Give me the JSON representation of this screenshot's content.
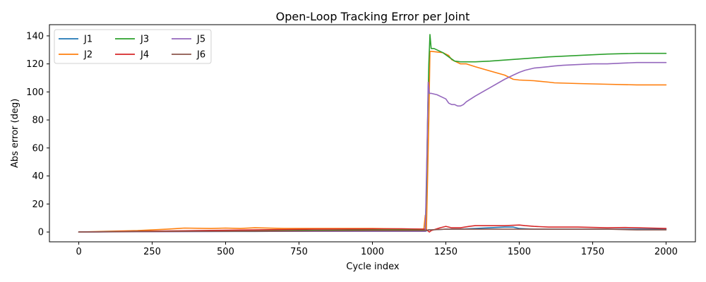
{
  "chart_data": {
    "type": "line",
    "title": "Open-Loop Tracking Error per Joint",
    "xlabel": "Cycle index",
    "ylabel": "Abs error (deg)",
    "xlim": [
      -100,
      2100
    ],
    "ylim": [
      -7,
      148
    ],
    "xticks": [
      0,
      250,
      500,
      750,
      1000,
      1250,
      1500,
      1750,
      2000
    ],
    "yticks": [
      0,
      20,
      40,
      60,
      80,
      100,
      120,
      140
    ],
    "grid": false,
    "legend": {
      "placement": "upper-left",
      "columns": 3
    },
    "series": [
      {
        "name": "J1",
        "color": "#1f77b4",
        "x": [
          0,
          100,
          200,
          400,
          600,
          800,
          1000,
          1100,
          1180,
          1190,
          1200,
          1250,
          1300,
          1350,
          1400,
          1450,
          1480,
          1500,
          1550,
          1600,
          1700,
          1800,
          1900,
          2000
        ],
        "y": [
          0,
          0.2,
          0.3,
          0.4,
          0.4,
          0.5,
          0.5,
          0.5,
          0.5,
          1.5,
          1.5,
          2,
          2,
          2.5,
          3,
          3.5,
          3.5,
          2.5,
          2,
          2,
          2,
          2,
          2,
          2
        ]
      },
      {
        "name": "J2",
        "color": "#ff7f0e",
        "x": [
          0,
          100,
          200,
          300,
          360,
          450,
          500,
          550,
          600,
          700,
          800,
          900,
          1000,
          1100,
          1175,
          1180,
          1184,
          1188,
          1192,
          1196,
          1200,
          1240,
          1260,
          1270,
          1280,
          1300,
          1320,
          1350,
          1400,
          1450,
          1480,
          1500,
          1550,
          1600,
          1620,
          1700,
          1800,
          1900,
          2000
        ],
        "y": [
          0,
          0.5,
          1,
          2,
          2.8,
          2.5,
          2.8,
          2.5,
          3,
          2.5,
          2.5,
          2.5,
          2.5,
          2.2,
          2,
          12,
          2,
          40,
          80,
          129,
          129,
          128,
          126,
          123,
          122,
          120,
          120,
          118,
          115,
          112,
          109,
          108.5,
          108,
          107,
          106.5,
          106,
          105.5,
          105,
          105
        ]
      },
      {
        "name": "J3",
        "color": "#2ca02c",
        "x": [
          0,
          200,
          400,
          600,
          800,
          1000,
          1100,
          1180,
          1184,
          1188,
          1192,
          1196,
          1200,
          1210,
          1220,
          1240,
          1260,
          1280,
          1300,
          1350,
          1400,
          1500,
          1600,
          1700,
          1800,
          1900,
          2000
        ],
        "y": [
          0,
          0.5,
          0.8,
          1,
          1.2,
          1.5,
          1.5,
          1.5,
          30,
          80,
          120,
          141,
          131,
          131,
          130,
          128,
          125,
          122,
          121.5,
          121.5,
          122,
          123.5,
          125,
          126,
          127,
          127.5,
          127.5
        ]
      },
      {
        "name": "J4",
        "color": "#d62728",
        "x": [
          0,
          200,
          400,
          600,
          800,
          1000,
          1100,
          1180,
          1188,
          1194,
          1200,
          1230,
          1250,
          1270,
          1300,
          1330,
          1350,
          1400,
          1450,
          1500,
          1520,
          1550,
          1600,
          1700,
          1800,
          1860,
          1900,
          2000
        ],
        "y": [
          0,
          0.5,
          1,
          1.5,
          2,
          2.2,
          2.3,
          2,
          1,
          0,
          1,
          3,
          4,
          3,
          3,
          4,
          4.5,
          4.5,
          4.5,
          5,
          4.5,
          4,
          3.5,
          3.5,
          3,
          3.2,
          3,
          2.5
        ]
      },
      {
        "name": "J5",
        "color": "#9467bd",
        "x": [
          0,
          200,
          400,
          600,
          800,
          1000,
          1100,
          1180,
          1186,
          1190,
          1194,
          1200,
          1220,
          1240,
          1250,
          1260,
          1270,
          1280,
          1290,
          1300,
          1310,
          1320,
          1350,
          1400,
          1450,
          1480,
          1500,
          1520,
          1550,
          1600,
          1620,
          1650,
          1700,
          1750,
          1800,
          1850,
          1900,
          2000
        ],
        "y": [
          0,
          0.2,
          0.3,
          0.5,
          0.5,
          0.5,
          0.5,
          0.5,
          60,
          107,
          99,
          99,
          98,
          96,
          95,
          92,
          91,
          91,
          90,
          90,
          91,
          93,
          97,
          103,
          109,
          112,
          114,
          115.5,
          117,
          118,
          118.5,
          119,
          119.5,
          120,
          120,
          120.5,
          121,
          121
        ]
      },
      {
        "name": "J6",
        "color": "#8c564b",
        "x": [
          0,
          200,
          400,
          600,
          800,
          1000,
          1100,
          1180,
          1190,
          1200,
          1250,
          1300,
          1350,
          1400,
          1500,
          1600,
          1700,
          1800,
          1900,
          2000
        ],
        "y": [
          0,
          0.3,
          0.5,
          0.5,
          0.8,
          1,
          1,
          1,
          1.5,
          1.5,
          2,
          2,
          2,
          2,
          2,
          2,
          2,
          2,
          1.5,
          1.5
        ]
      }
    ]
  }
}
